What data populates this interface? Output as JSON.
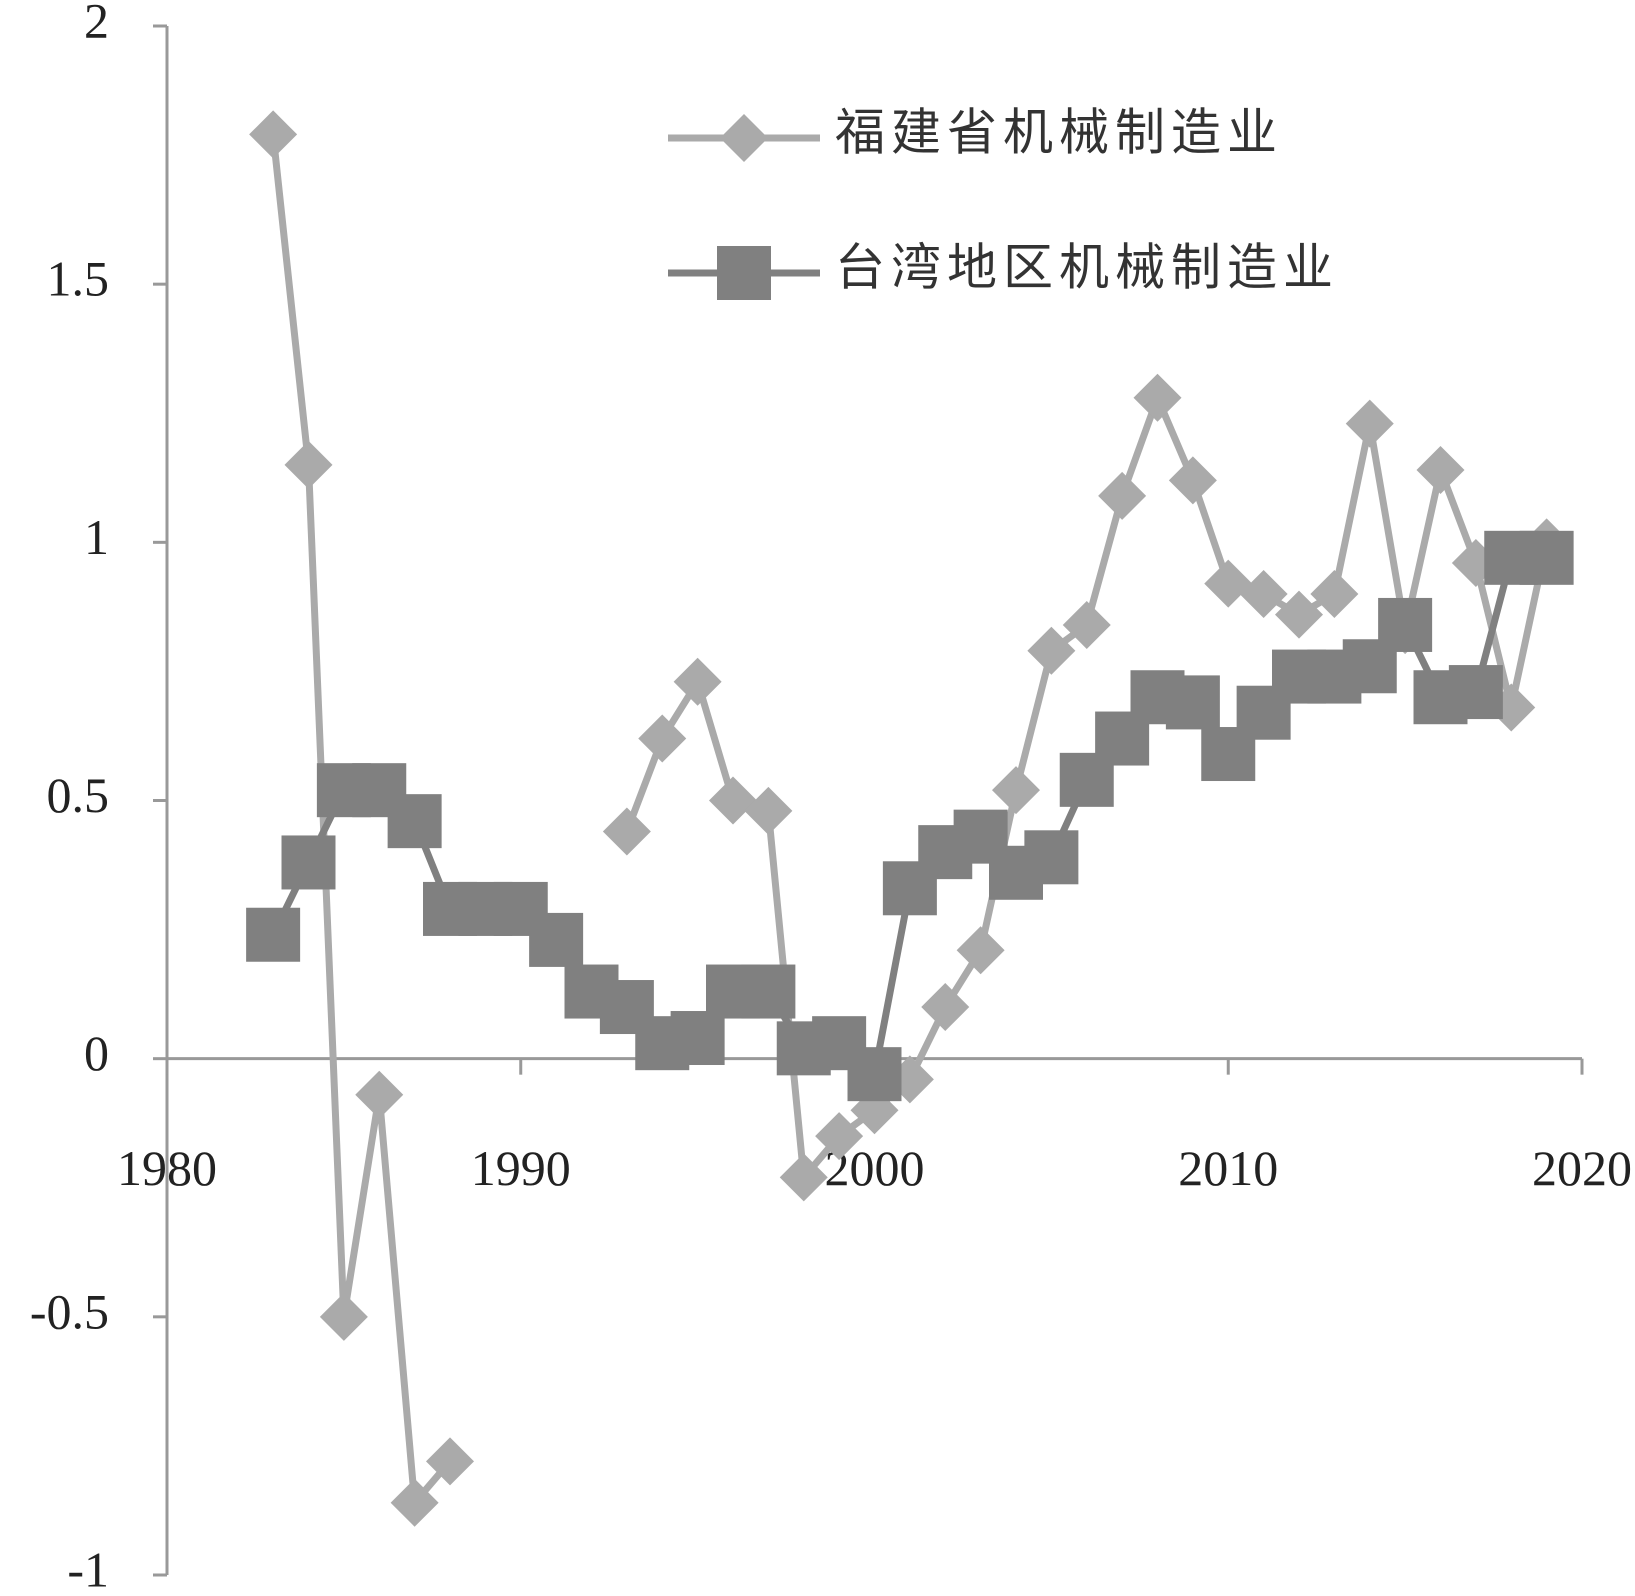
{
  "chart_data": {
    "type": "line",
    "x": [
      1983,
      1984,
      1985,
      1986,
      1987,
      1988,
      1989,
      1990,
      1991,
      1992,
      1993,
      1994,
      1995,
      1996,
      1997,
      1998,
      1999,
      2000,
      2001,
      2002,
      2003,
      2004,
      2005,
      2006,
      2007,
      2008,
      2009,
      2010,
      2011,
      2012,
      2013,
      2014,
      2015,
      2016,
      2017,
      2018,
      2019
    ],
    "series": [
      {
        "name": "福建省机械制造业",
        "color": "#aaaaaa",
        "marker": "diamond",
        "values": [
          1.79,
          1.15,
          -0.5,
          -0.07,
          -0.86,
          -0.78,
          null,
          null,
          null,
          null,
          0.44,
          0.62,
          0.73,
          0.5,
          0.48,
          -0.23,
          -0.15,
          -0.1,
          -0.04,
          0.1,
          0.21,
          0.52,
          0.79,
          0.84,
          1.09,
          1.28,
          1.12,
          0.92,
          0.9,
          0.86,
          0.9,
          1.23,
          0.83,
          1.14,
          0.96,
          0.68,
          1.0
        ]
      },
      {
        "name": "台湾地区机械制造业",
        "color": "#808080",
        "marker": "square",
        "values": [
          0.24,
          0.38,
          0.52,
          0.52,
          0.46,
          0.29,
          0.29,
          0.29,
          0.23,
          0.13,
          0.1,
          0.03,
          0.04,
          0.13,
          0.13,
          0.02,
          0.03,
          -0.03,
          0.33,
          0.4,
          0.43,
          0.36,
          0.39,
          0.54,
          0.62,
          0.7,
          0.69,
          0.59,
          0.67,
          0.74,
          0.74,
          0.76,
          0.84,
          0.7,
          0.71,
          0.97,
          0.97
        ]
      }
    ],
    "xlim": [
      1980,
      2020
    ],
    "xticks": [
      1980,
      1990,
      2000,
      2010,
      2020
    ],
    "ylim": [
      -1,
      2
    ],
    "yticks": [
      -1,
      -0.5,
      0,
      0.5,
      1,
      1.5,
      2
    ],
    "legend": "top-right"
  }
}
